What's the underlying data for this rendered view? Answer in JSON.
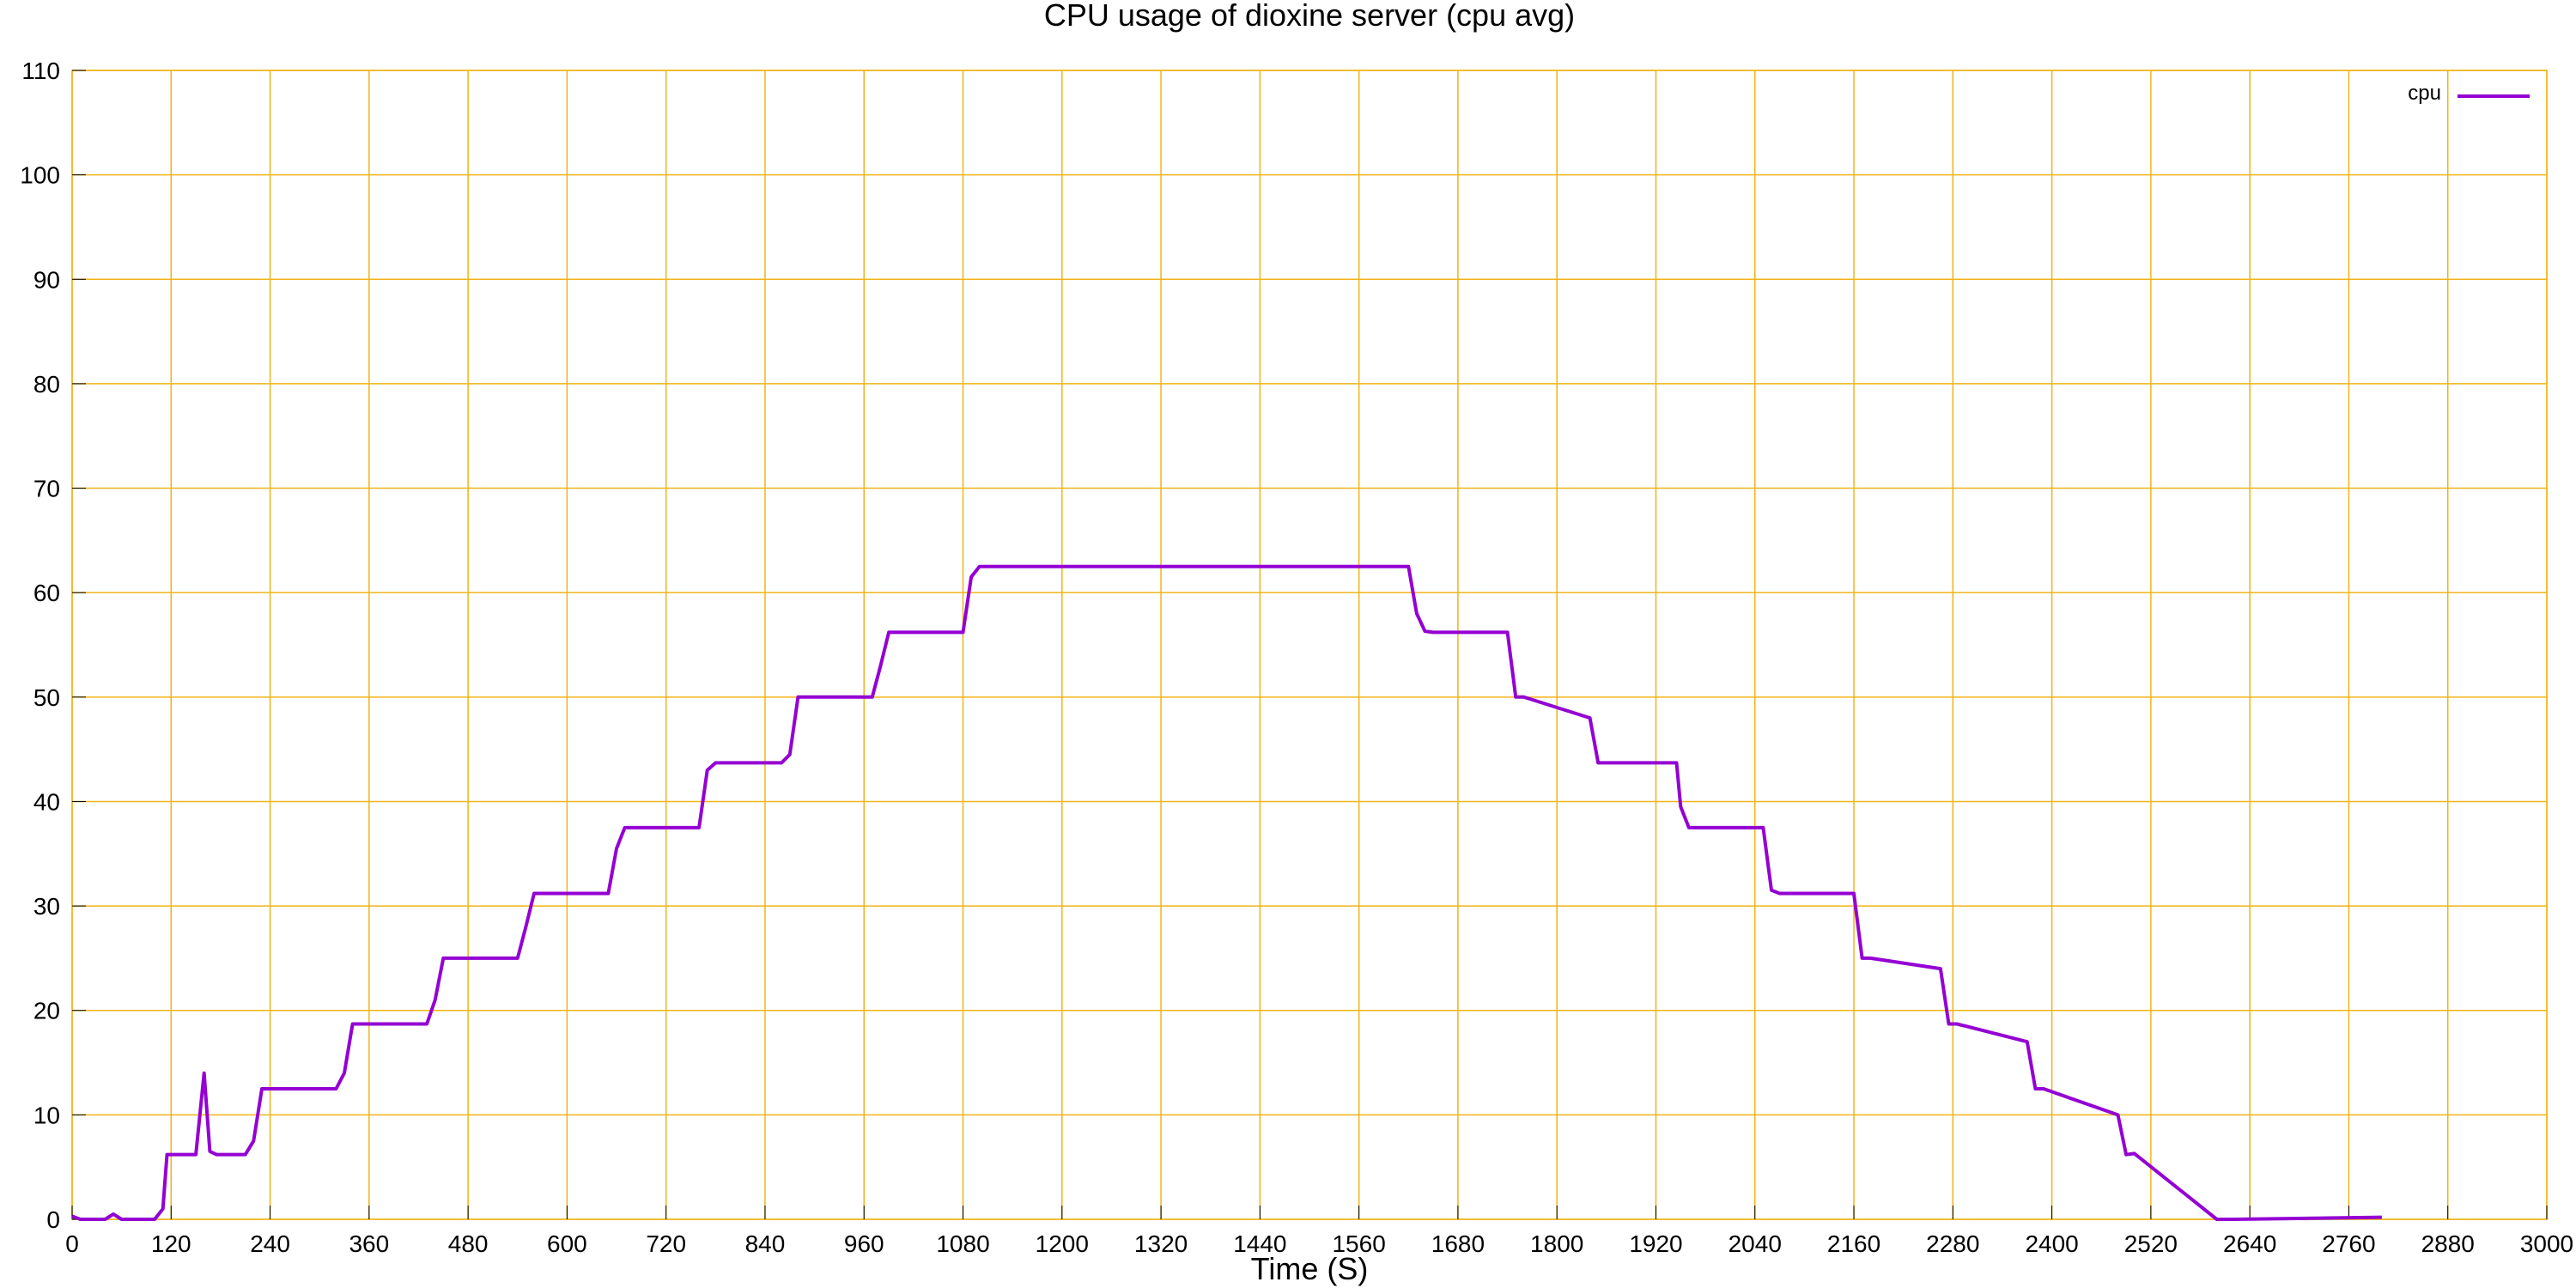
{
  "chart_data": {
    "type": "line",
    "title": "CPU usage of dioxine server (cpu avg)",
    "xlabel": "Time (S)",
    "ylabel": "",
    "xlim": [
      0,
      3000
    ],
    "ylim": [
      0,
      110
    ],
    "x_ticks": [
      0,
      120,
      240,
      360,
      480,
      600,
      720,
      840,
      960,
      1080,
      1200,
      1320,
      1440,
      1560,
      1680,
      1800,
      1920,
      2040,
      2160,
      2280,
      2400,
      2520,
      2640,
      2760,
      2880,
      3000
    ],
    "y_ticks": [
      0,
      10,
      20,
      30,
      40,
      50,
      60,
      70,
      80,
      90,
      100,
      110
    ],
    "grid": true,
    "grid_color": "#f0b419",
    "legend": {
      "position": "top-right"
    },
    "series": [
      {
        "name": "cpu",
        "color": "#9400d3",
        "x": [
          0,
          10,
          40,
          50,
          60,
          100,
          110,
          115,
          150,
          160,
          167,
          175,
          210,
          220,
          230,
          320,
          330,
          340,
          430,
          440,
          450,
          540,
          550,
          560,
          650,
          660,
          670,
          760,
          770,
          780,
          860,
          870,
          880,
          970,
          980,
          990,
          1080,
          1090,
          1100,
          1620,
          1630,
          1640,
          1650,
          1740,
          1750,
          1760,
          1840,
          1850,
          1860,
          1945,
          1950,
          1960,
          2050,
          2060,
          2070,
          2160,
          2170,
          2180,
          2265,
          2275,
          2285,
          2370,
          2380,
          2390,
          2480,
          2490,
          2500,
          2600,
          2620,
          2800
        ],
        "y": [
          0.3,
          0,
          0,
          0.5,
          0,
          0,
          1,
          6.2,
          6.2,
          14,
          6.5,
          6.2,
          6.2,
          7.5,
          12.5,
          12.5,
          14,
          18.7,
          18.7,
          21,
          25,
          25,
          28,
          31.2,
          31.2,
          35.5,
          37.5,
          37.5,
          43,
          43.7,
          43.7,
          44.5,
          50,
          50,
          53,
          56.2,
          56.2,
          61.5,
          62.5,
          62.5,
          58,
          56.3,
          56.2,
          56.2,
          50,
          50,
          48,
          43.7,
          43.7,
          43.7,
          39.5,
          37.5,
          37.5,
          31.5,
          31.2,
          31.2,
          25,
          25,
          24,
          18.7,
          18.7,
          17,
          12.5,
          12.5,
          10,
          6.2,
          6.3,
          0,
          0,
          0.2
        ]
      }
    ]
  }
}
